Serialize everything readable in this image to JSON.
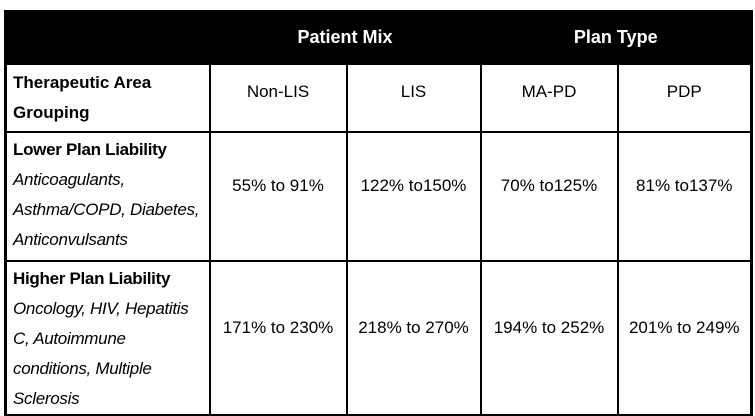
{
  "table": {
    "group_headers": [
      "Patient Mix",
      "Plan Type"
    ],
    "row_header_label": "Therapeutic Area Grouping",
    "column_headers": [
      "Non-LIS",
      "LIS",
      "MA-PD",
      "PDP"
    ],
    "rows": [
      {
        "title": "Lower Plan Liability",
        "therapies": "Anticoagulants, Asthma/COPD, Diabetes, Anticonvulsants",
        "values": [
          "55% to 91%",
          "122% to150%",
          "70% to125%",
          "81% to137%"
        ]
      },
      {
        "title": "Higher Plan Liability",
        "therapies": "Oncology, HIV, Hepatitis C, Autoimmune conditions, Multiple Sclerosis",
        "values": [
          "171% to 230%",
          "218% to 270%",
          "194% to 252%",
          "201% to 249%"
        ]
      }
    ],
    "colors": {
      "banner_background": "#000000",
      "banner_text": "#ffffff",
      "body_text": "#000000",
      "border": "#000000",
      "background": "#ffffff"
    }
  }
}
